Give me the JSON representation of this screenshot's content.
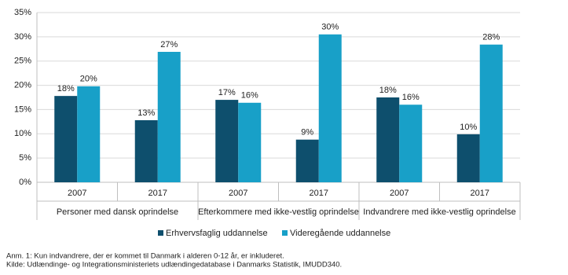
{
  "chart_data": {
    "type": "bar",
    "categories": [
      "2007",
      "2017",
      "2007",
      "2017",
      "2007",
      "2017"
    ],
    "groups": [
      "Personer med dansk oprindelse",
      "Efterkommere med ikke-vestlig oprindelse",
      "Indvandrere med ikke-vestlig oprindelse"
    ],
    "series": [
      {
        "name": "Erhvervsfaglig uddannelse",
        "color": "#0e4f6d",
        "values": [
          17.8,
          12.8,
          17.0,
          8.8,
          17.5,
          9.9
        ],
        "value_labels": [
          "18%",
          "13%",
          "17%",
          "9%",
          "18%",
          "10%"
        ]
      },
      {
        "name": "Videregående uddannelse",
        "color": "#18a0c8",
        "values": [
          19.8,
          26.9,
          16.4,
          30.5,
          16.0,
          28.4
        ],
        "value_labels": [
          "20%",
          "27%",
          "16%",
          "30%",
          "16%",
          "28%"
        ]
      }
    ],
    "ylim": [
      0,
      35
    ],
    "yticks": [
      {
        "value": 0,
        "label": "0%"
      },
      {
        "value": 5,
        "label": "5%"
      },
      {
        "value": 10,
        "label": "10%"
      },
      {
        "value": 15,
        "label": "15%"
      },
      {
        "value": 20,
        "label": "20%"
      },
      {
        "value": 25,
        "label": "25%"
      },
      {
        "value": 30,
        "label": "30%"
      },
      {
        "value": 35,
        "label": "35%"
      }
    ],
    "grid": true,
    "legend": "bottom",
    "notes": [
      "Anm. 1: Kun indvandrere, der er kommet til Danmark i alderen 0-12 år, er inkluderet.",
      "Kilde: Udlændinge- og Integrationsministeriets udlændingedatabase i Danmarks Statistik, IMUDD340."
    ]
  }
}
